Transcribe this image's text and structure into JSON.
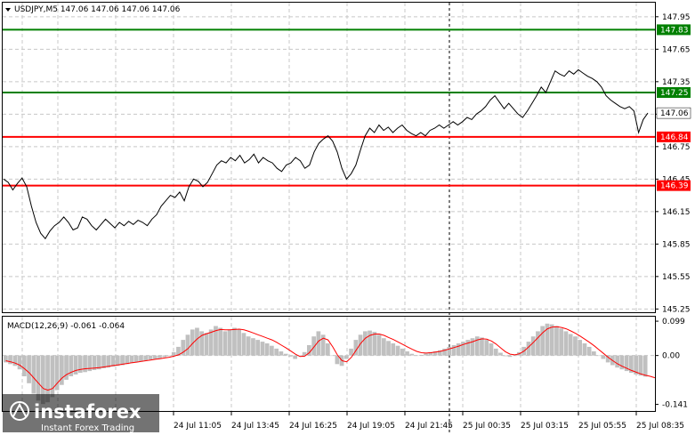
{
  "header": {
    "symbol_info": "USDJPY,M5  147.06 147.06 147.06 147.06"
  },
  "macd_header": {
    "label": "MACD(12,26,9) -0.061 -0.064"
  },
  "watermark": {
    "brand": "instaforex",
    "tagline": "Instant Forex Trading"
  },
  "colors": {
    "green_level": "#008000",
    "red_level": "#ff0000",
    "price_line": "#000000",
    "macd_hist": "#c0c0c0",
    "macd_signal": "#ff0000",
    "grid": "#c8c8c8"
  },
  "chart_data": [
    {
      "type": "line",
      "name": "price",
      "y_ticks": [
        "147.95",
        "147.65",
        "147.35",
        "147.05",
        "146.75",
        "146.45",
        "146.15",
        "145.85",
        "145.55",
        "145.25"
      ],
      "ylim": [
        145.22,
        148.08
      ],
      "x_tick_labels": [
        "24 Jul 11:05",
        "24 Jul 13:45",
        "24 Jul 16:25",
        "24 Jul 19:05",
        "24 Jul 21:45",
        "25 Jul 00:35",
        "25 Jul 03:15",
        "25 Jul 05:55",
        "25 Jul 08:35"
      ],
      "levels": [
        {
          "label": "147.83",
          "value": 147.83,
          "color": "green"
        },
        {
          "label": "147.25",
          "value": 147.25,
          "color": "green"
        },
        {
          "label": "146.84",
          "value": 146.84,
          "color": "red"
        },
        {
          "label": "146.39",
          "value": 146.39,
          "color": "red"
        }
      ],
      "current_price": {
        "label": "147.06",
        "value": 147.06
      },
      "values": [
        146.45,
        146.42,
        146.35,
        146.41,
        146.46,
        146.38,
        146.2,
        146.05,
        145.95,
        145.9,
        145.97,
        146.02,
        146.05,
        146.1,
        146.05,
        145.98,
        146.0,
        146.1,
        146.08,
        146.02,
        145.98,
        146.03,
        146.08,
        146.04,
        146.0,
        146.05,
        146.02,
        146.06,
        146.03,
        146.07,
        146.05,
        146.02,
        146.08,
        146.12,
        146.2,
        146.25,
        146.3,
        146.28,
        146.33,
        146.25,
        146.38,
        146.45,
        146.43,
        146.38,
        146.42,
        146.5,
        146.58,
        146.62,
        146.6,
        146.65,
        146.62,
        146.67,
        146.6,
        146.63,
        146.68,
        146.6,
        146.65,
        146.62,
        146.6,
        146.55,
        146.52,
        146.58,
        146.6,
        146.65,
        146.62,
        146.55,
        146.58,
        146.7,
        146.78,
        146.82,
        146.85,
        146.8,
        146.7,
        146.55,
        146.45,
        146.5,
        146.58,
        146.72,
        146.85,
        146.92,
        146.88,
        146.95,
        146.9,
        146.93,
        146.88,
        146.92,
        146.95,
        146.9,
        146.87,
        146.85,
        146.88,
        146.85,
        146.9,
        146.92,
        146.95,
        146.92,
        146.95,
        146.98,
        146.95,
        146.98,
        147.02,
        147.0,
        147.05,
        147.08,
        147.12,
        147.18,
        147.22,
        147.16,
        147.1,
        147.15,
        147.1,
        147.05,
        147.02,
        147.08,
        147.15,
        147.22,
        147.3,
        147.25,
        147.35,
        147.45,
        147.42,
        147.4,
        147.45,
        147.42,
        147.46,
        147.43,
        147.4,
        147.38,
        147.35,
        147.3,
        147.22,
        147.18,
        147.15,
        147.12,
        147.1,
        147.12,
        147.08,
        146.88,
        147.0,
        147.06
      ]
    },
    {
      "type": "bar",
      "name": "MACD(12,26,9)",
      "y_ticks": [
        "0.099",
        "0.00",
        "-0.141"
      ],
      "ylim": [
        -0.16,
        0.112
      ],
      "histogram": [
        -0.02,
        -0.025,
        -0.03,
        -0.04,
        -0.06,
        -0.08,
        -0.11,
        -0.13,
        -0.14,
        -0.135,
        -0.12,
        -0.1,
        -0.085,
        -0.07,
        -0.06,
        -0.055,
        -0.05,
        -0.048,
        -0.045,
        -0.042,
        -0.04,
        -0.037,
        -0.035,
        -0.032,
        -0.03,
        -0.028,
        -0.025,
        -0.022,
        -0.02,
        -0.018,
        -0.015,
        -0.012,
        -0.01,
        -0.008,
        -0.005,
        -0.002,
        0.01,
        0.025,
        0.045,
        0.06,
        0.075,
        0.08,
        0.07,
        0.065,
        0.075,
        0.085,
        0.08,
        0.07,
        0.075,
        0.08,
        0.075,
        0.065,
        0.055,
        0.05,
        0.045,
        0.04,
        0.035,
        0.028,
        0.02,
        0.012,
        0.005,
        -0.003,
        -0.01,
        -0.002,
        0.01,
        0.03,
        0.055,
        0.07,
        0.06,
        0.035,
        0.0,
        -0.025,
        -0.03,
        -0.01,
        0.02,
        0.045,
        0.06,
        0.07,
        0.072,
        0.068,
        0.06,
        0.05,
        0.042,
        0.035,
        0.028,
        0.02,
        0.012,
        0.005,
        0.0,
        0.002,
        0.006,
        0.01,
        0.012,
        0.015,
        0.02,
        0.025,
        0.03,
        0.035,
        0.04,
        0.045,
        0.05,
        0.055,
        0.052,
        0.045,
        0.035,
        0.02,
        0.008,
        -0.002,
        -0.004,
        0.0,
        0.01,
        0.025,
        0.04,
        0.055,
        0.07,
        0.085,
        0.092,
        0.09,
        0.085,
        0.078,
        0.07,
        0.062,
        0.055,
        0.045,
        0.035,
        0.025,
        0.012,
        0.0,
        -0.01,
        -0.02,
        -0.028,
        -0.035,
        -0.04,
        -0.045,
        -0.05,
        -0.055,
        -0.058,
        -0.061
      ],
      "signal": [
        -0.015,
        -0.018,
        -0.022,
        -0.028,
        -0.038,
        -0.05,
        -0.065,
        -0.08,
        -0.095,
        -0.1,
        -0.095,
        -0.08,
        -0.065,
        -0.055,
        -0.048,
        -0.043,
        -0.04,
        -0.038,
        -0.037,
        -0.036,
        -0.035,
        -0.033,
        -0.031,
        -0.029,
        -0.027,
        -0.025,
        -0.023,
        -0.021,
        -0.019,
        -0.017,
        -0.015,
        -0.013,
        -0.011,
        -0.009,
        -0.007,
        -0.005,
        -0.002,
        0.002,
        0.01,
        0.02,
        0.035,
        0.048,
        0.058,
        0.063,
        0.067,
        0.072,
        0.075,
        0.074,
        0.074,
        0.075,
        0.076,
        0.074,
        0.07,
        0.065,
        0.06,
        0.055,
        0.05,
        0.045,
        0.038,
        0.03,
        0.022,
        0.013,
        0.004,
        -0.003,
        -0.002,
        0.008,
        0.025,
        0.042,
        0.05,
        0.045,
        0.025,
        0.002,
        -0.015,
        -0.018,
        -0.005,
        0.015,
        0.035,
        0.05,
        0.058,
        0.062,
        0.062,
        0.058,
        0.052,
        0.046,
        0.039,
        0.032,
        0.025,
        0.018,
        0.012,
        0.008,
        0.007,
        0.008,
        0.01,
        0.012,
        0.015,
        0.019,
        0.023,
        0.027,
        0.032,
        0.036,
        0.04,
        0.045,
        0.048,
        0.047,
        0.042,
        0.033,
        0.022,
        0.011,
        0.004,
        0.002,
        0.005,
        0.013,
        0.025,
        0.038,
        0.052,
        0.066,
        0.077,
        0.082,
        0.083,
        0.081,
        0.077,
        0.071,
        0.064,
        0.056,
        0.047,
        0.038,
        0.028,
        0.017,
        0.006,
        -0.005,
        -0.015,
        -0.024,
        -0.031,
        -0.037,
        -0.043,
        -0.048,
        -0.053,
        -0.057,
        -0.06,
        -0.064
      ]
    }
  ]
}
